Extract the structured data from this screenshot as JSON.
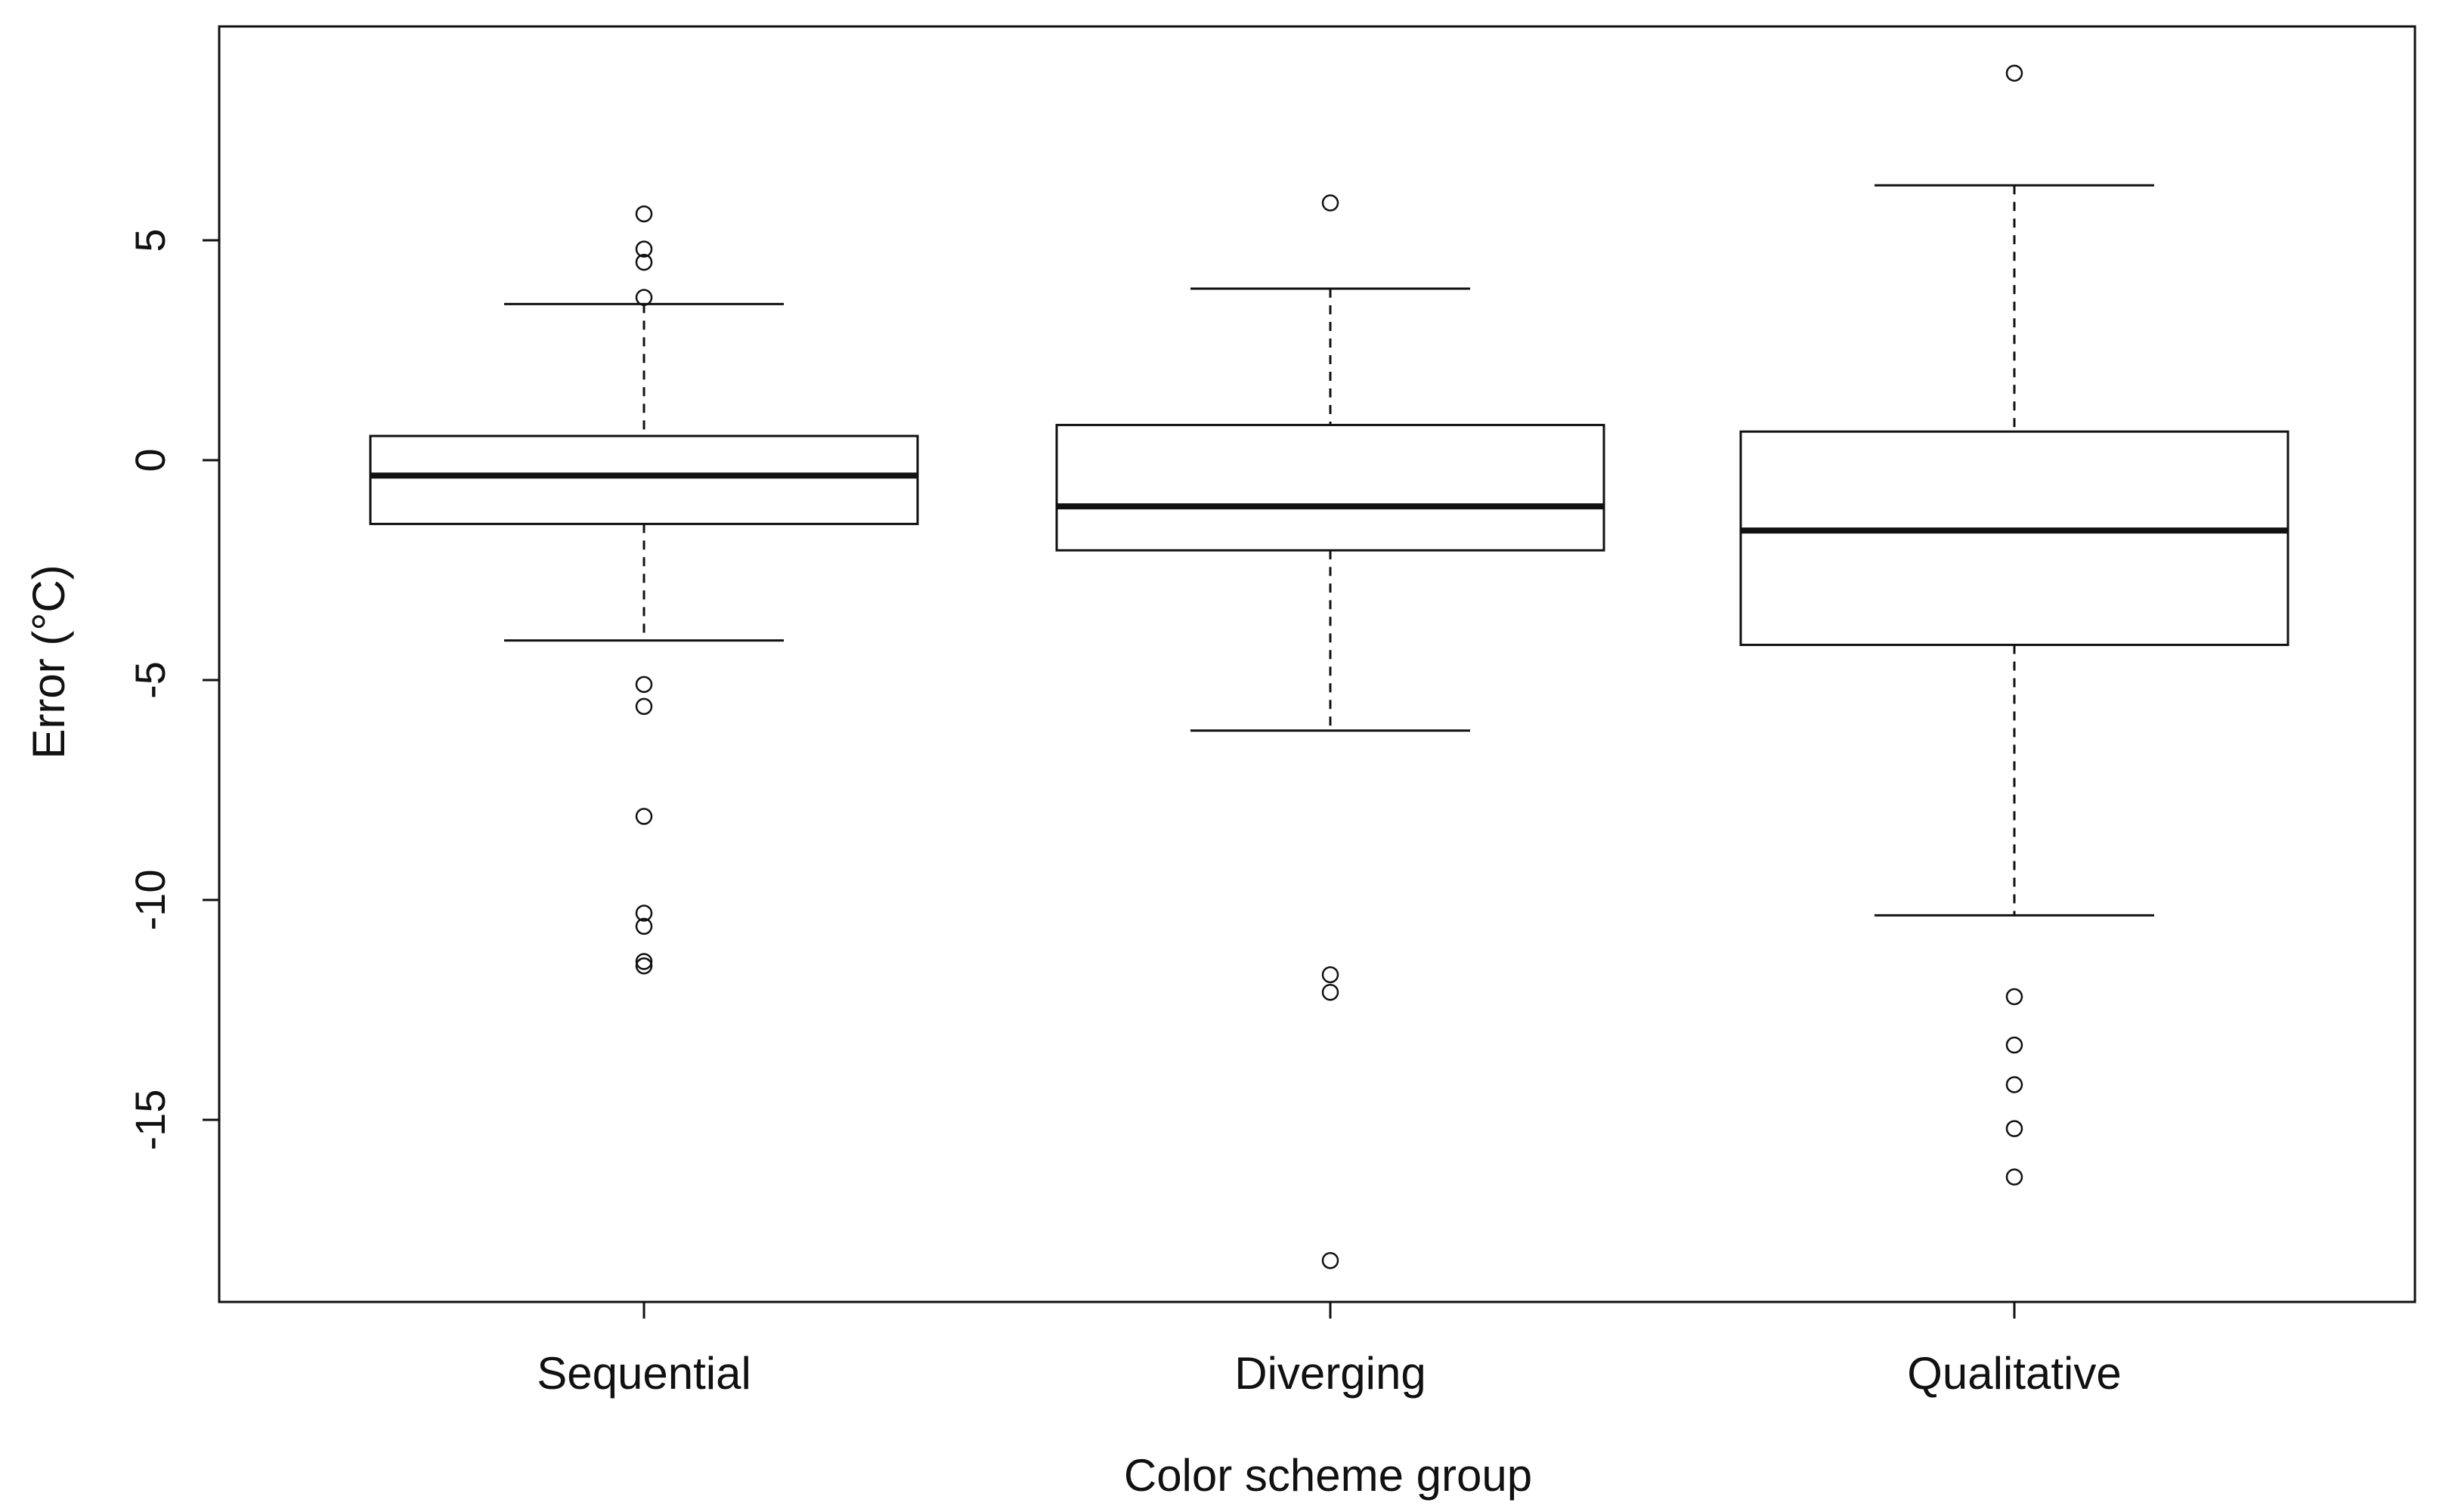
{
  "chart_data": {
    "type": "boxplot",
    "title": "",
    "xlabel": "Color scheme group",
    "ylabel": "Error (°C)",
    "ylim": [
      -19,
      10
    ],
    "yticks": [
      5,
      0,
      -5,
      -10,
      -15
    ],
    "ytick_labels": [
      "5",
      "0",
      "-5",
      "-10",
      "-15"
    ],
    "categories": [
      "Sequential",
      "Diverging",
      "Qualitative"
    ],
    "boxes": [
      {
        "name": "Sequential",
        "whisker_low": -4.1,
        "q1": -1.45,
        "median": -0.35,
        "q3": 0.55,
        "whisker_high": 3.55,
        "outliers": [
          5.6,
          4.8,
          4.5,
          3.7,
          -5.1,
          -5.6,
          -8.1,
          -10.3,
          -10.6,
          -11.4,
          -11.5
        ]
      },
      {
        "name": "Diverging",
        "whisker_low": -6.15,
        "q1": -2.05,
        "median": -1.05,
        "q3": 0.8,
        "whisker_high": 3.9,
        "outliers": [
          5.85,
          -11.7,
          -12.1,
          -18.2
        ]
      },
      {
        "name": "Qualitative",
        "whisker_low": -10.35,
        "q1": -4.2,
        "median": -1.6,
        "q3": 0.65,
        "whisker_high": 6.25,
        "outliers": [
          8.8,
          -12.2,
          -13.3,
          -14.2,
          -15.2,
          -16.3
        ]
      }
    ],
    "grid": false,
    "legend": "none"
  },
  "colors": {
    "line": "#111111",
    "whisker_grey": "#9a9a9a",
    "background": "#ffffff"
  }
}
